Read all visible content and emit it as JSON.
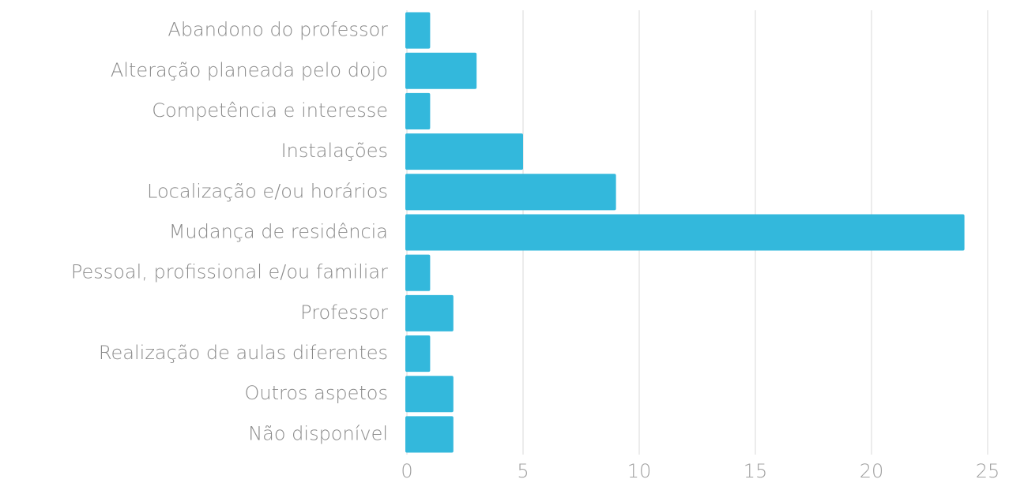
{
  "chart_data": {
    "type": "barh",
    "categories": [
      "Abandono do professor",
      "Alteração planeada pelo dojo",
      "Competência e interesse",
      "Instalações",
      "Localização e/ou horários",
      "Mudança de residência",
      "Pessoal, profissional e/ou familiar",
      "Professor",
      "Realização de aulas diferentes",
      "Outros aspetos",
      "Não disponível"
    ],
    "values": [
      1,
      3,
      1,
      5,
      9,
      24,
      1,
      2,
      1,
      2,
      2
    ],
    "color": "#33b8dc",
    "xlim": [
      0,
      25
    ],
    "xticks": [
      0,
      5,
      10,
      15,
      20,
      25
    ],
    "grid": true
  }
}
